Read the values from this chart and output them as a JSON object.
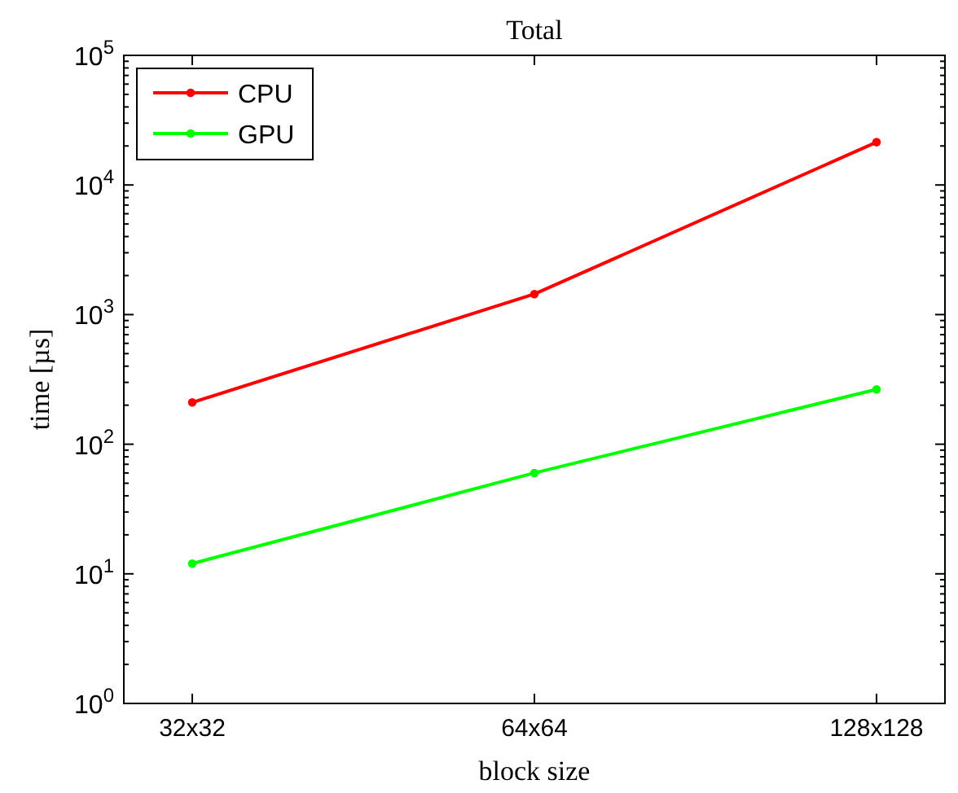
{
  "chart_data": {
    "type": "line",
    "title": "Total",
    "xlabel": "block size",
    "ylabel": "time [µs]",
    "categories": [
      "32x32",
      "64x64",
      "128x128"
    ],
    "series": [
      {
        "name": "CPU",
        "color": "#ff0000",
        "values": [
          210,
          1440,
          21400
        ]
      },
      {
        "name": "GPU",
        "color": "#00ff00",
        "values": [
          12,
          60,
          265
        ]
      }
    ],
    "log": true,
    "ylim": [
      1,
      100000
    ],
    "yticks": [
      {
        "value": 1,
        "label": "10$^{0}$"
      },
      {
        "value": 10,
        "label": "10$^{1}$"
      },
      {
        "value": 100,
        "label": "10$^{2}$"
      },
      {
        "value": 1000,
        "label": "10$^{3}$"
      },
      {
        "value": 10000,
        "label": "10$^{4}$"
      },
      {
        "value": 100000,
        "label": "10$^{5}$"
      }
    ],
    "legend": "top left",
    "marker": "circle",
    "line_style": "solid",
    "grid": false
  }
}
